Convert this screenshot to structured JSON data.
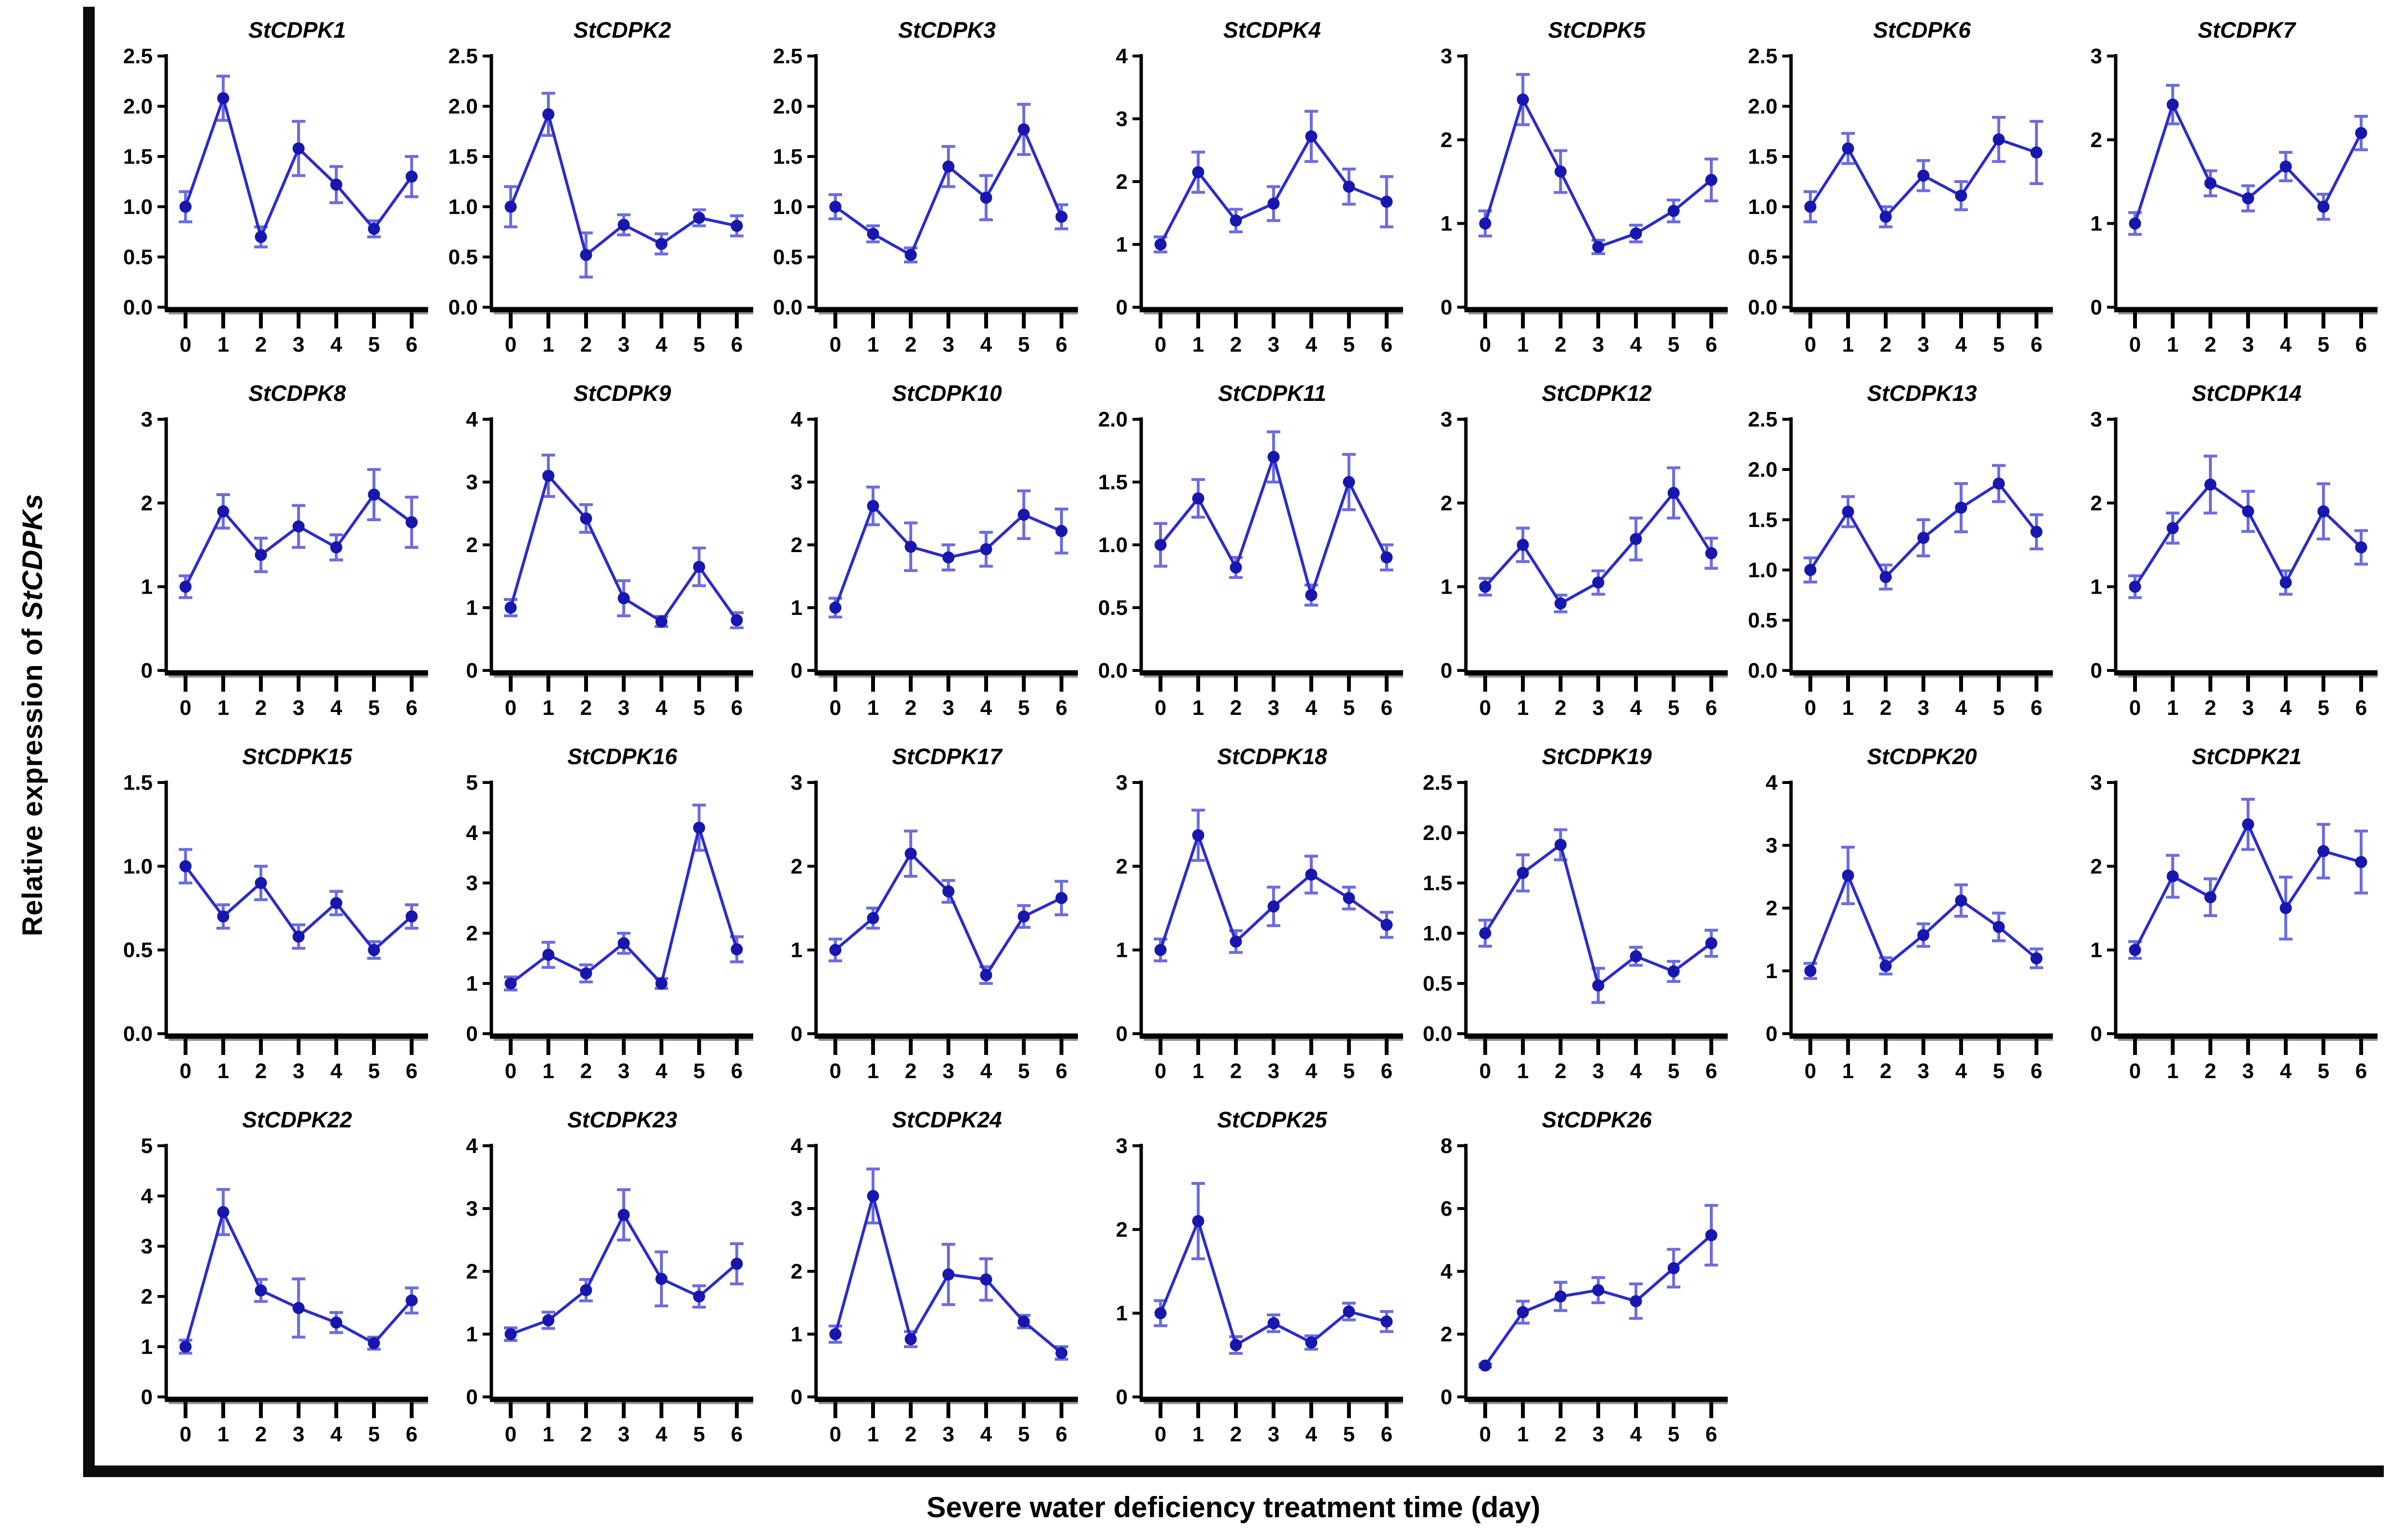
{
  "figure": {
    "ylabel_prefix": "Relative expression of ",
    "ylabel_italic": "StCDPKs",
    "xlabel": "Severe water deficiency treatment time (day)"
  },
  "colors": {
    "line": "#2b2bcc",
    "marker": "#1717ae",
    "error_bar": "#6c6ce0",
    "axis": "#000000",
    "axis_shadow": "#9a9a9a"
  },
  "chart_data": {
    "type": "line",
    "x_values": [
      0,
      1,
      2,
      3,
      4,
      5,
      6
    ],
    "xlabel": "Severe water deficiency treatment time (day)",
    "ylabel": "Relative expression of StCDPKs",
    "error_bars": true,
    "legend": "none",
    "grid": false,
    "panels": [
      {
        "title": "StCDPK1",
        "ylim": [
          0,
          2.5
        ],
        "ytick_step": 0.5,
        "ytick_decimals": 1,
        "values": [
          1.0,
          2.08,
          0.7,
          1.58,
          1.22,
          0.78,
          1.3
        ],
        "errors": [
          0.15,
          0.22,
          0.1,
          0.27,
          0.18,
          0.08,
          0.2
        ]
      },
      {
        "title": "StCDPK2",
        "ylim": [
          0,
          2.5
        ],
        "ytick_step": 0.5,
        "ytick_decimals": 1,
        "values": [
          1.0,
          1.92,
          0.52,
          0.82,
          0.63,
          0.89,
          0.81
        ],
        "errors": [
          0.2,
          0.21,
          0.22,
          0.1,
          0.1,
          0.08,
          0.1
        ]
      },
      {
        "title": "StCDPK3",
        "ylim": [
          0,
          2.5
        ],
        "ytick_step": 0.5,
        "ytick_decimals": 1,
        "values": [
          1.0,
          0.73,
          0.52,
          1.4,
          1.09,
          1.77,
          0.9
        ],
        "errors": [
          0.12,
          0.08,
          0.07,
          0.2,
          0.22,
          0.25,
          0.12
        ]
      },
      {
        "title": "StCDPK4",
        "ylim": [
          0,
          4
        ],
        "ytick_step": 1,
        "ytick_decimals": 0,
        "values": [
          1.0,
          2.15,
          1.38,
          1.65,
          2.72,
          1.92,
          1.68
        ],
        "errors": [
          0.12,
          0.32,
          0.18,
          0.27,
          0.4,
          0.28,
          0.4
        ]
      },
      {
        "title": "StCDPK5",
        "ylim": [
          0,
          3
        ],
        "ytick_step": 1,
        "ytick_decimals": 0,
        "values": [
          1.0,
          2.48,
          1.62,
          0.72,
          0.88,
          1.15,
          1.52
        ],
        "errors": [
          0.15,
          0.3,
          0.25,
          0.08,
          0.1,
          0.13,
          0.25
        ]
      },
      {
        "title": "StCDPK6",
        "ylim": [
          0,
          2.5
        ],
        "ytick_step": 0.5,
        "ytick_decimals": 1,
        "values": [
          1.0,
          1.58,
          0.9,
          1.31,
          1.11,
          1.67,
          1.54
        ],
        "errors": [
          0.15,
          0.15,
          0.1,
          0.15,
          0.14,
          0.22,
          0.31
        ]
      },
      {
        "title": "StCDPK7",
        "ylim": [
          0,
          3
        ],
        "ytick_step": 1,
        "ytick_decimals": 0,
        "values": [
          1.0,
          2.42,
          1.48,
          1.3,
          1.68,
          1.2,
          2.08
        ],
        "errors": [
          0.13,
          0.23,
          0.15,
          0.15,
          0.17,
          0.15,
          0.2
        ]
      },
      {
        "title": "StCDPK8",
        "ylim": [
          0,
          3
        ],
        "ytick_step": 1,
        "ytick_decimals": 0,
        "values": [
          1.0,
          1.9,
          1.38,
          1.72,
          1.47,
          2.1,
          1.77
        ],
        "errors": [
          0.13,
          0.2,
          0.2,
          0.25,
          0.15,
          0.3,
          0.3
        ]
      },
      {
        "title": "StCDPK9",
        "ylim": [
          0,
          4
        ],
        "ytick_step": 1,
        "ytick_decimals": 0,
        "values": [
          1.0,
          3.1,
          2.42,
          1.15,
          0.78,
          1.65,
          0.8
        ],
        "errors": [
          0.13,
          0.33,
          0.22,
          0.28,
          0.08,
          0.3,
          0.12
        ]
      },
      {
        "title": "StCDPK10",
        "ylim": [
          0,
          4
        ],
        "ytick_step": 1,
        "ytick_decimals": 0,
        "values": [
          1.0,
          2.62,
          1.97,
          1.8,
          1.93,
          2.48,
          2.22
        ],
        "errors": [
          0.15,
          0.3,
          0.38,
          0.2,
          0.27,
          0.38,
          0.35
        ]
      },
      {
        "title": "StCDPK11",
        "ylim": [
          0,
          2
        ],
        "ytick_step": 0.5,
        "ytick_decimals": 1,
        "values": [
          1.0,
          1.37,
          0.82,
          1.7,
          0.6,
          1.5,
          0.9
        ],
        "errors": [
          0.17,
          0.15,
          0.08,
          0.2,
          0.08,
          0.22,
          0.1
        ]
      },
      {
        "title": "StCDPK12",
        "ylim": [
          0,
          3
        ],
        "ytick_step": 1,
        "ytick_decimals": 0,
        "values": [
          1.0,
          1.5,
          0.8,
          1.05,
          1.57,
          2.12,
          1.4
        ],
        "errors": [
          0.1,
          0.2,
          0.1,
          0.14,
          0.25,
          0.3,
          0.18
        ]
      },
      {
        "title": "StCDPK13",
        "ylim": [
          0,
          2.5
        ],
        "ytick_step": 0.5,
        "ytick_decimals": 1,
        "values": [
          1.0,
          1.58,
          0.93,
          1.32,
          1.62,
          1.86,
          1.38
        ],
        "errors": [
          0.12,
          0.15,
          0.12,
          0.18,
          0.24,
          0.18,
          0.17
        ]
      },
      {
        "title": "StCDPK14",
        "ylim": [
          0,
          3
        ],
        "ytick_step": 1,
        "ytick_decimals": 0,
        "values": [
          1.0,
          1.7,
          2.22,
          1.9,
          1.05,
          1.9,
          1.47
        ],
        "errors": [
          0.13,
          0.18,
          0.34,
          0.24,
          0.14,
          0.33,
          0.2
        ]
      },
      {
        "title": "StCDPK15",
        "ylim": [
          0,
          1.5
        ],
        "ytick_step": 0.5,
        "ytick_decimals": 1,
        "values": [
          1.0,
          0.7,
          0.9,
          0.58,
          0.78,
          0.5,
          0.7
        ],
        "errors": [
          0.1,
          0.07,
          0.1,
          0.07,
          0.07,
          0.05,
          0.07
        ]
      },
      {
        "title": "StCDPK16",
        "ylim": [
          0,
          5
        ],
        "ytick_step": 1,
        "ytick_decimals": 0,
        "values": [
          1.0,
          1.57,
          1.2,
          1.8,
          1.0,
          4.1,
          1.68
        ],
        "errors": [
          0.13,
          0.25,
          0.17,
          0.2,
          0.1,
          0.45,
          0.25
        ]
      },
      {
        "title": "StCDPK17",
        "ylim": [
          0,
          3
        ],
        "ytick_step": 1,
        "ytick_decimals": 0,
        "values": [
          1.0,
          1.38,
          2.15,
          1.7,
          0.7,
          1.4,
          1.62
        ],
        "errors": [
          0.13,
          0.12,
          0.27,
          0.13,
          0.1,
          0.13,
          0.2
        ]
      },
      {
        "title": "StCDPK18",
        "ylim": [
          0,
          3
        ],
        "ytick_step": 1,
        "ytick_decimals": 0,
        "values": [
          1.0,
          2.37,
          1.1,
          1.52,
          1.9,
          1.62,
          1.3
        ],
        "errors": [
          0.13,
          0.3,
          0.13,
          0.23,
          0.22,
          0.13,
          0.15
        ]
      },
      {
        "title": "StCDPK19",
        "ylim": [
          0,
          2.5
        ],
        "ytick_step": 0.5,
        "ytick_decimals": 1,
        "values": [
          1.0,
          1.6,
          1.88,
          0.48,
          0.77,
          0.62,
          0.9
        ],
        "errors": [
          0.13,
          0.18,
          0.15,
          0.17,
          0.09,
          0.1,
          0.13
        ]
      },
      {
        "title": "StCDPK20",
        "ylim": [
          0,
          4
        ],
        "ytick_step": 1,
        "ytick_decimals": 0,
        "values": [
          1.0,
          2.52,
          1.08,
          1.57,
          2.12,
          1.7,
          1.2
        ],
        "errors": [
          0.12,
          0.45,
          0.13,
          0.18,
          0.25,
          0.22,
          0.15
        ]
      },
      {
        "title": "StCDPK21",
        "ylim": [
          0,
          3
        ],
        "ytick_step": 1,
        "ytick_decimals": 0,
        "values": [
          1.0,
          1.88,
          1.63,
          2.5,
          1.5,
          2.18,
          2.05
        ],
        "errors": [
          0.1,
          0.25,
          0.22,
          0.3,
          0.37,
          0.32,
          0.37
        ]
      },
      {
        "title": "StCDPK22",
        "ylim": [
          0,
          5
        ],
        "ytick_step": 1,
        "ytick_decimals": 0,
        "values": [
          1.0,
          3.68,
          2.12,
          1.77,
          1.48,
          1.07,
          1.92
        ],
        "errors": [
          0.13,
          0.45,
          0.22,
          0.58,
          0.2,
          0.12,
          0.25
        ]
      },
      {
        "title": "StCDPK23",
        "ylim": [
          0,
          4
        ],
        "ytick_step": 1,
        "ytick_decimals": 0,
        "values": [
          1.0,
          1.22,
          1.7,
          2.9,
          1.88,
          1.6,
          2.12
        ],
        "errors": [
          0.1,
          0.13,
          0.17,
          0.4,
          0.43,
          0.17,
          0.32
        ]
      },
      {
        "title": "StCDPK24",
        "ylim": [
          0,
          4
        ],
        "ytick_step": 1,
        "ytick_decimals": 0,
        "values": [
          1.0,
          3.2,
          0.92,
          1.95,
          1.87,
          1.2,
          0.7
        ],
        "errors": [
          0.13,
          0.43,
          0.12,
          0.48,
          0.33,
          0.1,
          0.1
        ]
      },
      {
        "title": "StCDPK25",
        "ylim": [
          0,
          3
        ],
        "ytick_step": 1,
        "ytick_decimals": 0,
        "values": [
          1.0,
          2.1,
          0.62,
          0.88,
          0.65,
          1.02,
          0.9
        ],
        "errors": [
          0.15,
          0.45,
          0.1,
          0.1,
          0.08,
          0.1,
          0.12
        ]
      },
      {
        "title": "StCDPK26",
        "ylim": [
          0,
          8
        ],
        "ytick_step": 2,
        "ytick_decimals": 0,
        "values": [
          1.0,
          2.7,
          3.2,
          3.4,
          3.05,
          4.1,
          5.15
        ],
        "errors": [
          0.05,
          0.35,
          0.45,
          0.4,
          0.55,
          0.6,
          0.95
        ]
      }
    ]
  }
}
